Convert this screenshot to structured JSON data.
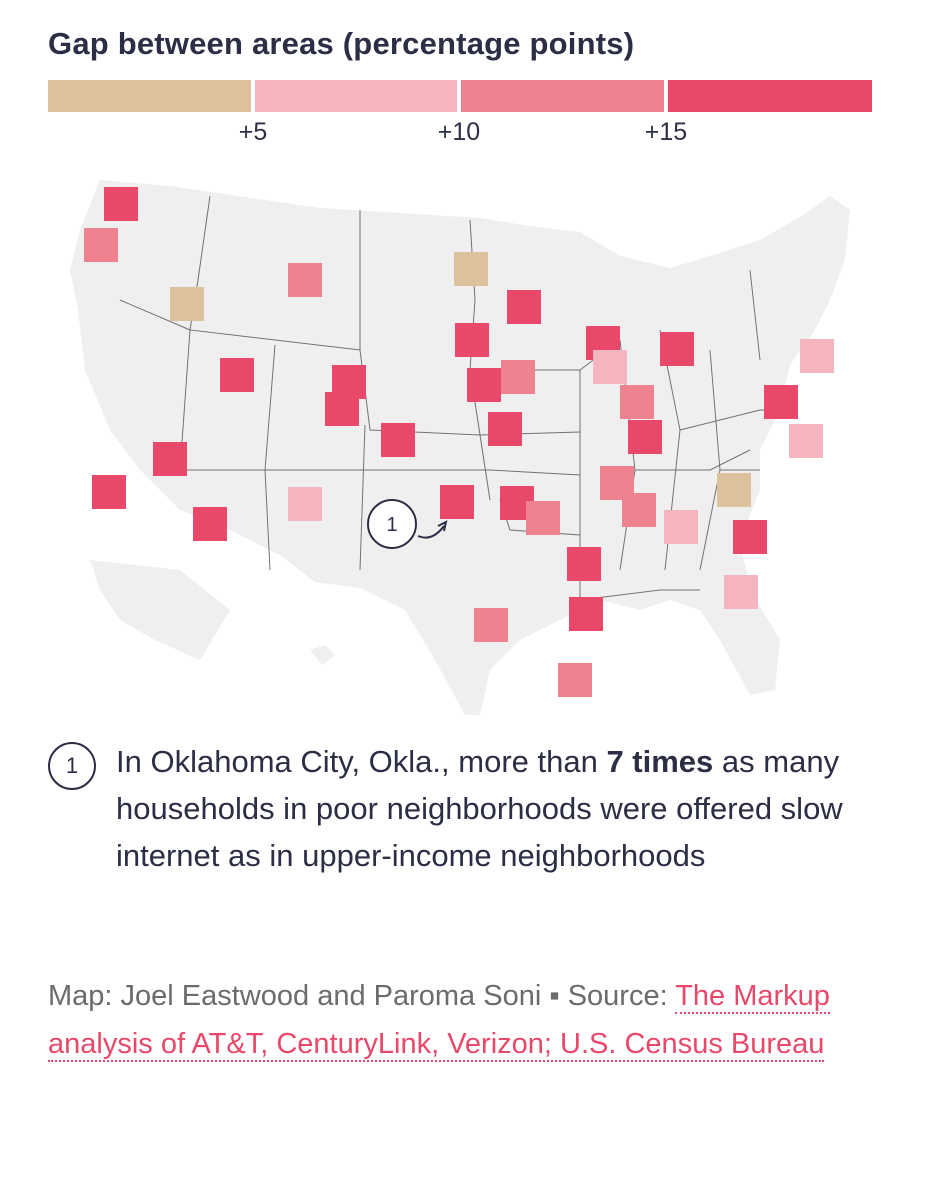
{
  "legend": {
    "title": "Gap between areas (percentage points)",
    "colors": [
      "#dcc19d",
      "#f5b5bf",
      "#ef8290",
      "#e8486a"
    ],
    "ticks": [
      "+5",
      "+10",
      "+15"
    ]
  },
  "map": {
    "base_color": "#efefef",
    "border_color": "#6f7278",
    "cities": [
      {
        "name": "seattle",
        "level": 3
      },
      {
        "name": "portland",
        "level": 2
      },
      {
        "name": "boise",
        "level": 0
      },
      {
        "name": "billings",
        "level": 2
      },
      {
        "name": "salt-lake-city",
        "level": 3
      },
      {
        "name": "cheyenne",
        "level": 3
      },
      {
        "name": "denver",
        "level": 3
      },
      {
        "name": "colorado-springs",
        "level": 3
      },
      {
        "name": "fargo",
        "level": 0
      },
      {
        "name": "minneapolis",
        "level": 3
      },
      {
        "name": "sioux-falls",
        "level": 3
      },
      {
        "name": "omaha",
        "level": 3
      },
      {
        "name": "des-moines",
        "level": 2
      },
      {
        "name": "kansas-city",
        "level": 3
      },
      {
        "name": "wichita",
        "level": 3
      },
      {
        "name": "oklahoma-city",
        "level": 3
      },
      {
        "name": "las-vegas",
        "level": 3
      },
      {
        "name": "los-angeles",
        "level": 3
      },
      {
        "name": "phoenix",
        "level": 3
      },
      {
        "name": "albuquerque",
        "level": 1
      },
      {
        "name": "milwaukee",
        "level": 3
      },
      {
        "name": "chicago",
        "level": 1
      },
      {
        "name": "detroit",
        "level": 3
      },
      {
        "name": "indianapolis",
        "level": 2
      },
      {
        "name": "louisville",
        "level": 3
      },
      {
        "name": "nashville",
        "level": 2
      },
      {
        "name": "memphis-area",
        "level": 2
      },
      {
        "name": "little-rock",
        "level": 2
      },
      {
        "name": "birmingham",
        "level": 2
      },
      {
        "name": "atlanta",
        "level": 1
      },
      {
        "name": "jackson",
        "level": 3
      },
      {
        "name": "new-orleans",
        "level": 3
      },
      {
        "name": "houston",
        "level": 2
      },
      {
        "name": "charlotte",
        "level": 0
      },
      {
        "name": "columbia",
        "level": 3
      },
      {
        "name": "jacksonville",
        "level": 1
      },
      {
        "name": "philadelphia",
        "level": 3
      },
      {
        "name": "new-york",
        "level": 1
      },
      {
        "name": "richmond",
        "level": 1
      }
    ],
    "callout_number": "1"
  },
  "note": {
    "number": "1",
    "text_before": "In Oklahoma City, Okla., more than ",
    "text_bold": "7 times",
    "text_after": " as many households in poor neighborhoods were offered slow internet as in upper-income neighborhoods"
  },
  "credit": {
    "byline": "Map: Joel Eastwood and Paroma Soni",
    "separator": " ▪ ",
    "source_label": "Source: ",
    "source_link": "The Markup analysis of AT&T, CenturyLink, Verizon; U.S. Census Bureau"
  }
}
